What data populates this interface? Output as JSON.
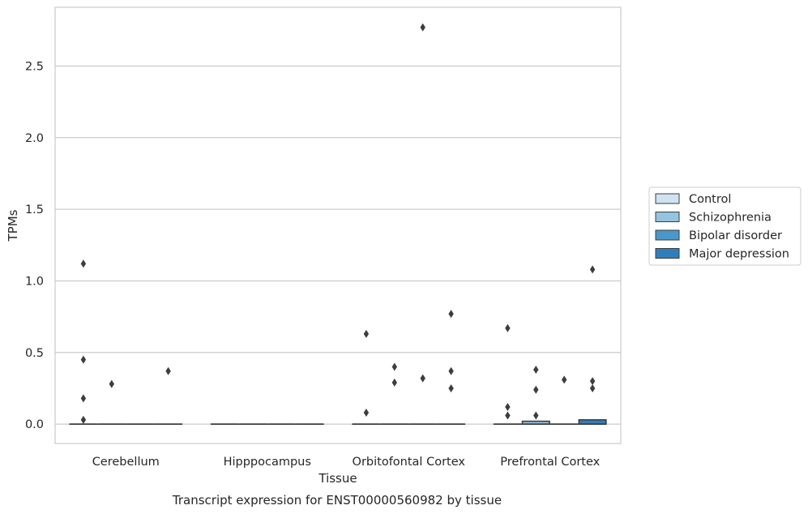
{
  "chart_data": {
    "type": "box",
    "title": "",
    "caption": "Transcript expression for ENST00000560982 by tissue",
    "xlabel": "Tissue",
    "ylabel": "TPMs",
    "ylim": [
      -0.135,
      2.91
    ],
    "yticks": [
      "0.0",
      "0.5",
      "1.0",
      "1.5",
      "2.0",
      "2.5"
    ],
    "ytick_values": [
      0.0,
      0.5,
      1.0,
      1.5,
      2.0,
      2.5
    ],
    "grid": true,
    "legend_position": "right",
    "categories": [
      "Cerebellum",
      "Hipppocampus",
      "Orbitofontal Cortex",
      "Prefrontal Cortex"
    ],
    "series": [
      {
        "name": "Control",
        "color": "#d0e1f2",
        "boxes": [
          {
            "median": 0,
            "q1": 0,
            "q3": 0,
            "outliers": [
              0.03,
              0.18,
              0.45,
              1.12
            ]
          },
          {
            "median": 0,
            "q1": 0,
            "q3": 0,
            "outliers": []
          },
          {
            "median": 0,
            "q1": 0,
            "q3": 0,
            "outliers": [
              0.08,
              0.63
            ]
          },
          {
            "median": 0,
            "q1": 0,
            "q3": 0,
            "outliers": [
              0.06,
              0.12,
              0.67
            ]
          }
        ]
      },
      {
        "name": "Schizophrenia",
        "color": "#94c4df",
        "boxes": [
          {
            "median": 0,
            "q1": 0,
            "q3": 0,
            "outliers": [
              0.28
            ]
          },
          {
            "median": 0,
            "q1": 0,
            "q3": 0,
            "outliers": []
          },
          {
            "median": 0,
            "q1": 0,
            "q3": 0,
            "outliers": [
              0.29,
              0.4
            ]
          },
          {
            "median": 0,
            "q1": 0,
            "q3": 0.02,
            "outliers": [
              0.06,
              0.24,
              0.38
            ]
          }
        ]
      },
      {
        "name": "Bipolar disorder",
        "color": "#4a98c9",
        "boxes": [
          {
            "median": 0,
            "q1": 0,
            "q3": 0,
            "outliers": []
          },
          {
            "median": 0,
            "q1": 0,
            "q3": 0,
            "outliers": []
          },
          {
            "median": 0,
            "q1": 0,
            "q3": 0,
            "outliers": [
              0.32,
              2.77
            ]
          },
          {
            "median": 0,
            "q1": 0,
            "q3": 0,
            "outliers": [
              0.31
            ]
          }
        ]
      },
      {
        "name": "Major depression",
        "color": "#2e7ebc",
        "boxes": [
          {
            "median": 0,
            "q1": 0,
            "q3": 0,
            "outliers": [
              0.37
            ]
          },
          {
            "median": 0,
            "q1": 0,
            "q3": 0,
            "outliers": []
          },
          {
            "median": 0,
            "q1": 0,
            "q3": 0,
            "outliers": [
              0.25,
              0.37,
              0.77
            ]
          },
          {
            "median": 0,
            "q1": 0,
            "q3": 0.03,
            "outliers": [
              0.25,
              0.3,
              1.08
            ]
          }
        ]
      }
    ]
  }
}
